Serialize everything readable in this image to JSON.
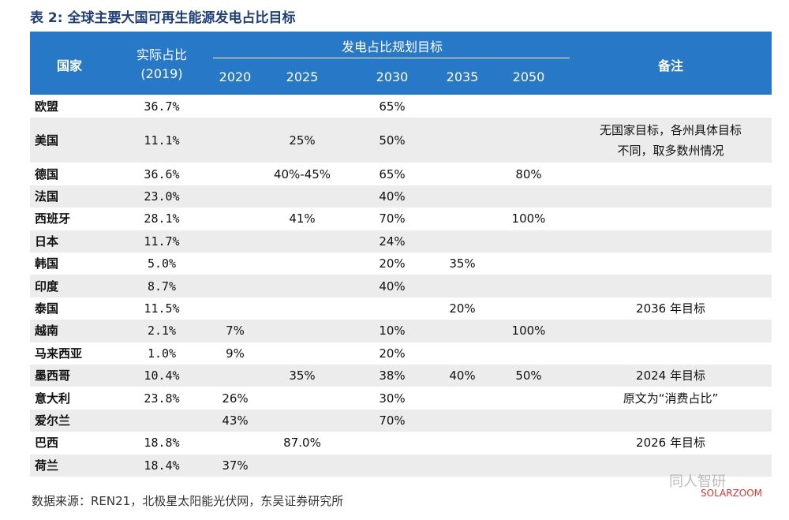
{
  "header": {
    "title": "表 2: 全球主要大国可再生能源发电占比目标"
  },
  "table": {
    "columns": {
      "country": "国家",
      "actual": "实际占比",
      "actual_year": "(2019)",
      "targets": "发电占比规划目标",
      "years": [
        "2020",
        "2025",
        "2030",
        "2035",
        "2050"
      ],
      "note": "备注"
    },
    "rows": [
      [
        "欧盟",
        "36.7%",
        null,
        null,
        "65%",
        null,
        null,
        null
      ],
      [
        "美国",
        "11.1%",
        null,
        "25%",
        "50%",
        null,
        null,
        [
          "无国家目标，各州具体目标",
          "不同，取多数州情况"
        ]
      ],
      [
        "德国",
        "36.6%",
        null,
        "40%-45%",
        "65%",
        null,
        "80%",
        null
      ],
      [
        "法国",
        "23.0%",
        null,
        null,
        "40%",
        null,
        null,
        null
      ],
      [
        "西班牙",
        "28.1%",
        null,
        "41%",
        "70%",
        null,
        "100%",
        null
      ],
      [
        "日本",
        "11.7%",
        null,
        null,
        "24%",
        null,
        null,
        null
      ],
      [
        "韩国",
        "5.0%",
        null,
        null,
        "20%",
        "35%",
        null,
        null
      ],
      [
        "印度",
        "8.7%",
        null,
        null,
        "40%",
        null,
        null,
        null
      ],
      [
        "泰国",
        "11.5%",
        null,
        null,
        null,
        "20%",
        null,
        [
          "2036 年目标"
        ]
      ],
      [
        "越南",
        "2.1%",
        "7%",
        null,
        "10%",
        null,
        "100%",
        null
      ],
      [
        "马来西亚",
        "1.0%",
        "9%",
        null,
        "20%",
        null,
        null,
        null
      ],
      [
        "墨西哥",
        "10.4%",
        null,
        "35%",
        "38%",
        "40%",
        "50%",
        [
          "2024 年目标"
        ]
      ],
      [
        "意大利",
        "23.8%",
        "26%",
        null,
        "30%",
        null,
        null,
        [
          "原文为“消费占比”"
        ]
      ],
      [
        "爱尔兰",
        null,
        "43%",
        null,
        "70%",
        null,
        null,
        null
      ],
      [
        "巴西",
        "18.8%",
        null,
        "87.0%",
        null,
        null,
        null,
        [
          "2026 年目标"
        ]
      ],
      [
        "荷兰",
        "18.4%",
        "37%",
        null,
        null,
        null,
        null,
        null
      ]
    ]
  },
  "footer": {
    "source": "数据来源：REN21，北极星太阳能光伏网，东吴证券研究所",
    "watermark": [
      "同人智研",
      "SOLARZOOM"
    ]
  }
}
